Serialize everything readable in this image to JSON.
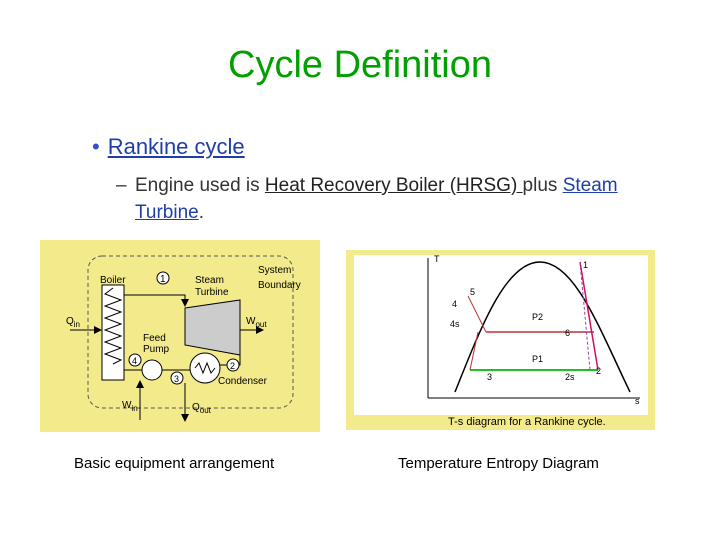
{
  "title": "Cycle Definition",
  "bullet": {
    "marker": "•",
    "text": "Rankine cycle"
  },
  "sub_bullet": {
    "marker": "–",
    "segments": [
      "Engine used is ",
      "Heat Recovery Boiler (HRSG) ",
      "plus ",
      "Steam Turbine",
      "."
    ]
  },
  "left_figure": {
    "labels": [
      "Boiler",
      "1",
      "Steam",
      "Turbine",
      "System",
      "Boundary",
      "Q",
      "in",
      "W",
      "out",
      "Feed",
      "Pump",
      "4",
      "3",
      "2",
      "Condenser",
      "W",
      "in",
      "Q",
      "out"
    ],
    "caption": "Basic equipment arrangement"
  },
  "right_figure": {
    "labels": [
      "T",
      "1",
      "5",
      "4",
      "4s",
      "P2",
      "6",
      "P1",
      "3",
      "2s",
      "2",
      "s",
      "T-s diagram for a Rankine cycle."
    ],
    "caption": "Temperature Entropy Diagram"
  }
}
